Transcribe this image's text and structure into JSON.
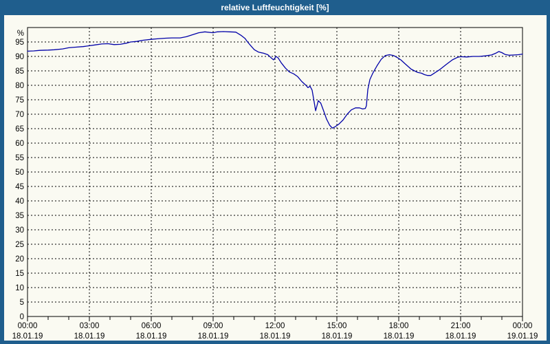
{
  "window": {
    "title": "relative Luftfeuchtigkeit [%]"
  },
  "colors": {
    "frame_blue": "#1f5e8d",
    "panel_bg": "#fafaf2",
    "title_text": "#ffffff",
    "axis_text": "#000000",
    "grid": "#000000",
    "plot_border": "#000000",
    "line": "#0000a8"
  },
  "chart_data": {
    "type": "line",
    "title": "relative Luftfeuchtigkeit [%]",
    "y_unit_label": "%",
    "ylim": [
      0,
      100
    ],
    "y_tick_step": 5,
    "y_ticks": [
      0,
      5,
      10,
      15,
      20,
      25,
      30,
      35,
      40,
      45,
      50,
      55,
      60,
      65,
      70,
      75,
      80,
      85,
      90,
      95
    ],
    "x_hours_range": [
      0,
      24
    ],
    "x_minor_tick_hours": 1,
    "grid_style": "dashed",
    "legend": "none",
    "x_major_ticks": [
      {
        "hour": 0,
        "time": "00:00",
        "date": "18.01.19"
      },
      {
        "hour": 3,
        "time": "03:00",
        "date": "18.01.19"
      },
      {
        "hour": 6,
        "time": "06:00",
        "date": "18.01.19"
      },
      {
        "hour": 9,
        "time": "09:00",
        "date": "18.01.19"
      },
      {
        "hour": 12,
        "time": "12:00",
        "date": "18.01.19"
      },
      {
        "hour": 15,
        "time": "15:00",
        "date": "18.01.19"
      },
      {
        "hour": 18,
        "time": "18:00",
        "date": "18.01.19"
      },
      {
        "hour": 21,
        "time": "21:00",
        "date": "18.01.19"
      },
      {
        "hour": 24,
        "time": "00:00",
        "date": "19.01.19"
      }
    ],
    "series": [
      {
        "name": "relative Luftfeuchtigkeit",
        "points": [
          [
            0,
            91.8
          ],
          [
            0.3,
            91.9
          ],
          [
            0.6,
            92.1
          ],
          [
            1,
            92.2
          ],
          [
            1.3,
            92.3
          ],
          [
            1.7,
            92.6
          ],
          [
            2,
            93.0
          ],
          [
            2.3,
            93.2
          ],
          [
            2.7,
            93.4
          ],
          [
            3,
            93.7
          ],
          [
            3.3,
            94.0
          ],
          [
            3.6,
            94.3
          ],
          [
            3.9,
            94.4
          ],
          [
            4.2,
            94.1
          ],
          [
            4.5,
            94.2
          ],
          [
            4.8,
            94.6
          ],
          [
            5,
            95.0
          ],
          [
            5.3,
            95.2
          ],
          [
            5.6,
            95.6
          ],
          [
            6,
            95.9
          ],
          [
            6.3,
            96.1
          ],
          [
            6.7,
            96.3
          ],
          [
            7,
            96.4
          ],
          [
            7.4,
            96.4
          ],
          [
            7.7,
            96.8
          ],
          [
            8,
            97.5
          ],
          [
            8.3,
            98.2
          ],
          [
            8.6,
            98.5
          ],
          [
            9,
            98.2
          ],
          [
            9.2,
            98.5
          ],
          [
            9.5,
            98.6
          ],
          [
            9.8,
            98.5
          ],
          [
            10.1,
            98.4
          ],
          [
            10.35,
            97.3
          ],
          [
            10.55,
            96.2
          ],
          [
            10.67,
            95.0
          ],
          [
            10.85,
            93.5
          ],
          [
            11,
            92.3
          ],
          [
            11.2,
            91.5
          ],
          [
            11.45,
            91.1
          ],
          [
            11.65,
            90.6
          ],
          [
            11.8,
            89.6
          ],
          [
            11.93,
            88.8
          ],
          [
            12.05,
            90.0
          ],
          [
            12.15,
            89.5
          ],
          [
            12.3,
            87.8
          ],
          [
            12.5,
            86.0
          ],
          [
            12.7,
            84.6
          ],
          [
            12.9,
            84.0
          ],
          [
            13.1,
            83.0
          ],
          [
            13.3,
            81.3
          ],
          [
            13.5,
            80.0
          ],
          [
            13.6,
            79.2
          ],
          [
            13.7,
            79.7
          ],
          [
            13.8,
            78.3
          ],
          [
            13.88,
            75.0
          ],
          [
            13.97,
            71.2
          ],
          [
            14.1,
            74.7
          ],
          [
            14.22,
            73.8
          ],
          [
            14.35,
            71.3
          ],
          [
            14.5,
            68.3
          ],
          [
            14.65,
            66.2
          ],
          [
            14.78,
            65.2
          ],
          [
            14.9,
            65.6
          ],
          [
            15.1,
            66.6
          ],
          [
            15.3,
            68.0
          ],
          [
            15.5,
            70.0
          ],
          [
            15.7,
            71.5
          ],
          [
            15.9,
            72.2
          ],
          [
            16.1,
            72.2
          ],
          [
            16.25,
            71.8
          ],
          [
            16.38,
            72.0
          ],
          [
            16.43,
            72.9
          ],
          [
            16.5,
            78.5
          ],
          [
            16.6,
            82.0
          ],
          [
            16.75,
            84.3
          ],
          [
            16.95,
            86.8
          ],
          [
            17.15,
            89.0
          ],
          [
            17.35,
            90.3
          ],
          [
            17.55,
            90.6
          ],
          [
            17.75,
            90.3
          ],
          [
            17.95,
            89.5
          ],
          [
            18.1,
            88.8
          ],
          [
            18.3,
            87.5
          ],
          [
            18.6,
            85.6
          ],
          [
            18.9,
            84.5
          ],
          [
            19.1,
            84.2
          ],
          [
            19.25,
            83.7
          ],
          [
            19.4,
            83.4
          ],
          [
            19.55,
            83.4
          ],
          [
            19.7,
            84.1
          ],
          [
            20,
            85.5
          ],
          [
            20.3,
            87.2
          ],
          [
            20.6,
            88.8
          ],
          [
            20.85,
            89.7
          ],
          [
            21,
            89.9
          ],
          [
            21.3,
            89.8
          ],
          [
            21.6,
            90.0
          ],
          [
            21.9,
            90.0
          ],
          [
            22.2,
            90.2
          ],
          [
            22.5,
            90.5
          ],
          [
            22.7,
            91.1
          ],
          [
            22.85,
            91.7
          ],
          [
            23,
            91.3
          ],
          [
            23.15,
            90.7
          ],
          [
            23.35,
            90.4
          ],
          [
            23.6,
            90.5
          ],
          [
            23.8,
            90.6
          ],
          [
            24,
            90.8
          ]
        ]
      }
    ]
  }
}
